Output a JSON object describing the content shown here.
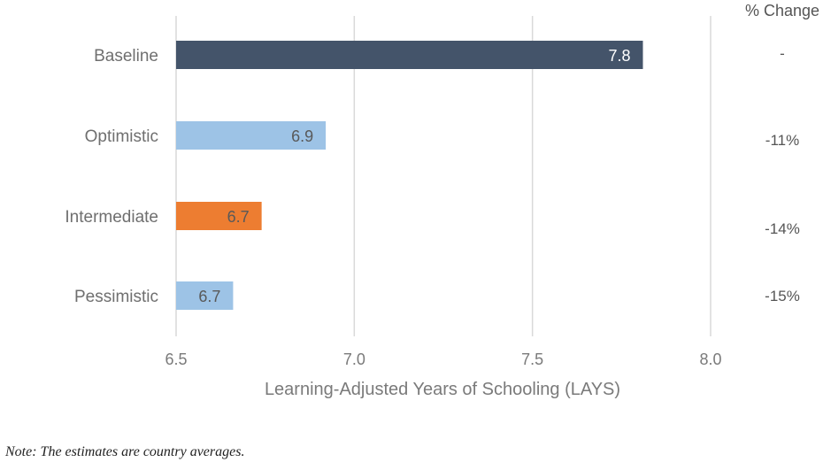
{
  "chart_data": {
    "type": "bar",
    "orientation": "horizontal",
    "categories": [
      "Baseline",
      "Optimistic",
      "Intermediate",
      "Pessimistic"
    ],
    "values": [
      7.81,
      6.92,
      6.74,
      6.66
    ],
    "data_labels": [
      "7.8",
      "6.9",
      "6.7",
      "6.7"
    ],
    "bar_colors": [
      "#44546a",
      "#9dc3e6",
      "#ed7d31",
      "#9dc3e6"
    ],
    "data_label_colors": [
      "#ffffff",
      "#595959",
      "#595959",
      "#595959"
    ],
    "xlabel": "Learning-Adjusted Years of Schooling (LAYS)",
    "xlim": [
      6.5,
      8.0
    ],
    "xticks": [
      6.5,
      7.0,
      7.5,
      8.0
    ],
    "xtick_labels": [
      "6.5",
      "7.0",
      "7.5",
      "8.0"
    ],
    "grid": "vertical",
    "change_header": "% Change",
    "changes": [
      "-",
      "-11%",
      "-14%",
      "-15%"
    ]
  },
  "note": "Note: The estimates are country averages."
}
